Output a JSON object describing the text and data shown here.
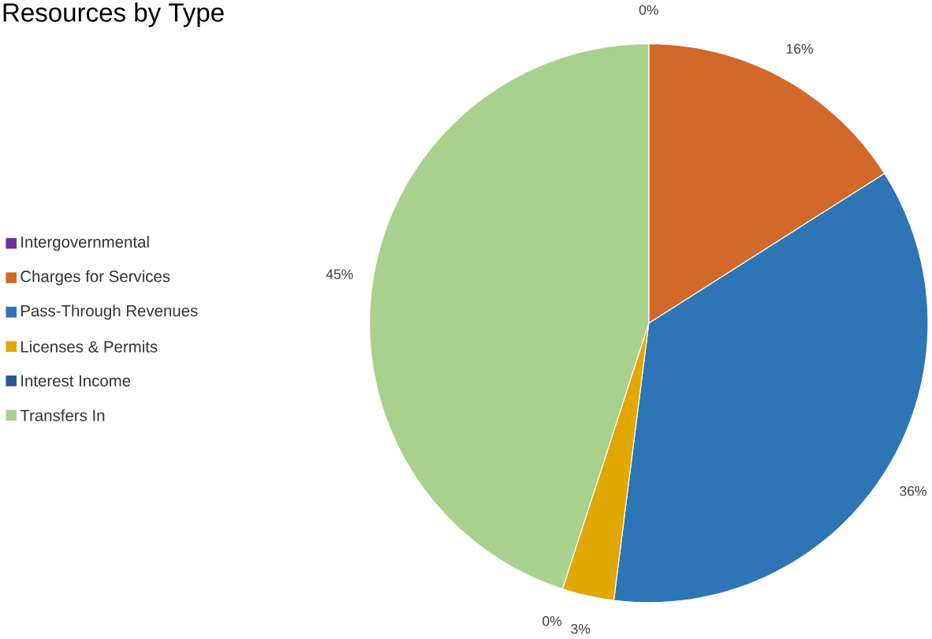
{
  "chart_data": {
    "type": "pie",
    "title": "Resources by Type",
    "categories": [
      "Intergovernmental",
      "Charges for Services",
      "Pass-Through Revenues",
      "Licenses & Permits",
      "Interest Income",
      "Transfers In"
    ],
    "values": [
      0,
      16,
      36,
      3,
      0,
      45
    ],
    "colors": [
      "#7030a0",
      "#d2692a",
      "#2e75b6",
      "#e0a800",
      "#2f5597",
      "#a9d18e"
    ],
    "value_labels": [
      "0%",
      "16%",
      "36%",
      "3%",
      "0%",
      "45%"
    ],
    "legend": "left"
  }
}
